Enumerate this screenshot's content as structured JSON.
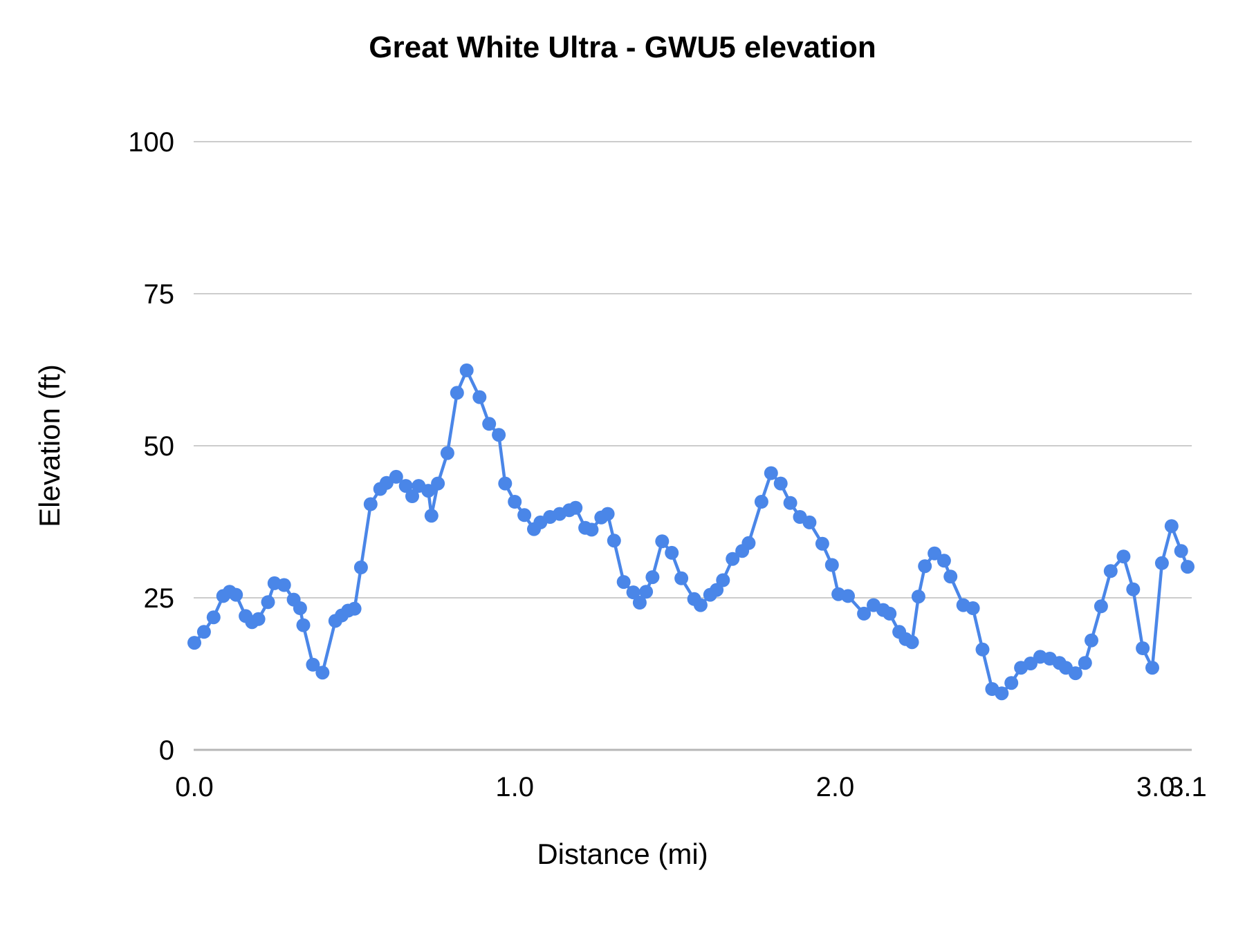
{
  "chart_data": {
    "type": "line",
    "title": "Great White Ultra - GWU5 elevation",
    "xlabel": "Distance (mi)",
    "ylabel": "Elevation (ft)",
    "xlim": [
      0,
      3.1
    ],
    "ylim": [
      0,
      100
    ],
    "grid": true,
    "legend": "none",
    "x_ticks": [
      {
        "value": 0.0,
        "label": "0.0"
      },
      {
        "value": 1.0,
        "label": "1.0"
      },
      {
        "value": 2.0,
        "label": "2.0"
      },
      {
        "value": 3.0,
        "label": "3.0"
      },
      {
        "value": 3.1,
        "label": "3.1"
      }
    ],
    "y_ticks": [
      {
        "value": 0,
        "label": "0"
      },
      {
        "value": 25,
        "label": "25"
      },
      {
        "value": 50,
        "label": "50"
      },
      {
        "value": 75,
        "label": "75"
      },
      {
        "value": 100,
        "label": "100"
      }
    ],
    "series": [
      {
        "name": "GWU5 elevation",
        "color": "#4a86e8",
        "marker_radius": 10,
        "line_width": 4.5,
        "points": [
          [
            0.0,
            17.6
          ],
          [
            0.03,
            19.4
          ],
          [
            0.06,
            21.8
          ],
          [
            0.09,
            25.3
          ],
          [
            0.11,
            26.0
          ],
          [
            0.13,
            25.5
          ],
          [
            0.16,
            22.0
          ],
          [
            0.18,
            21.0
          ],
          [
            0.2,
            21.5
          ],
          [
            0.23,
            24.3
          ],
          [
            0.25,
            27.4
          ],
          [
            0.28,
            27.1
          ],
          [
            0.31,
            24.7
          ],
          [
            0.33,
            23.3
          ],
          [
            0.34,
            20.5
          ],
          [
            0.37,
            14.0
          ],
          [
            0.4,
            12.7
          ],
          [
            0.44,
            21.2
          ],
          [
            0.46,
            22.1
          ],
          [
            0.48,
            22.9
          ],
          [
            0.5,
            23.2
          ],
          [
            0.52,
            30.0
          ],
          [
            0.55,
            40.4
          ],
          [
            0.58,
            42.9
          ],
          [
            0.6,
            43.9
          ],
          [
            0.63,
            44.9
          ],
          [
            0.66,
            43.4
          ],
          [
            0.68,
            41.7
          ],
          [
            0.7,
            43.4
          ],
          [
            0.73,
            42.6
          ],
          [
            0.74,
            38.5
          ],
          [
            0.76,
            43.8
          ],
          [
            0.79,
            48.8
          ],
          [
            0.82,
            58.7
          ],
          [
            0.85,
            62.4
          ],
          [
            0.89,
            58.0
          ],
          [
            0.92,
            53.6
          ],
          [
            0.95,
            51.8
          ],
          [
            0.97,
            43.8
          ],
          [
            1.0,
            40.8
          ],
          [
            1.03,
            38.6
          ],
          [
            1.06,
            36.3
          ],
          [
            1.08,
            37.4
          ],
          [
            1.11,
            38.3
          ],
          [
            1.14,
            38.8
          ],
          [
            1.17,
            39.4
          ],
          [
            1.19,
            39.8
          ],
          [
            1.22,
            36.5
          ],
          [
            1.24,
            36.2
          ],
          [
            1.27,
            38.2
          ],
          [
            1.29,
            38.8
          ],
          [
            1.31,
            34.4
          ],
          [
            1.34,
            27.6
          ],
          [
            1.37,
            25.9
          ],
          [
            1.39,
            24.2
          ],
          [
            1.41,
            26.0
          ],
          [
            1.43,
            28.4
          ],
          [
            1.46,
            34.3
          ],
          [
            1.49,
            32.4
          ],
          [
            1.52,
            28.2
          ],
          [
            1.56,
            24.8
          ],
          [
            1.58,
            23.8
          ],
          [
            1.61,
            25.5
          ],
          [
            1.63,
            26.3
          ],
          [
            1.65,
            27.9
          ],
          [
            1.68,
            31.4
          ],
          [
            1.71,
            32.7
          ],
          [
            1.73,
            34.0
          ],
          [
            1.77,
            40.8
          ],
          [
            1.8,
            45.5
          ],
          [
            1.83,
            43.8
          ],
          [
            1.86,
            40.6
          ],
          [
            1.89,
            38.3
          ],
          [
            1.92,
            37.4
          ],
          [
            1.96,
            33.9
          ],
          [
            1.99,
            30.4
          ],
          [
            2.01,
            25.6
          ],
          [
            2.04,
            25.3
          ],
          [
            2.09,
            22.4
          ],
          [
            2.12,
            23.8
          ],
          [
            2.15,
            23.0
          ],
          [
            2.17,
            22.4
          ],
          [
            2.2,
            19.4
          ],
          [
            2.22,
            18.2
          ],
          [
            2.24,
            17.7
          ],
          [
            2.26,
            25.2
          ],
          [
            2.28,
            30.2
          ],
          [
            2.31,
            32.3
          ],
          [
            2.34,
            31.1
          ],
          [
            2.36,
            28.5
          ],
          [
            2.4,
            23.8
          ],
          [
            2.43,
            23.3
          ],
          [
            2.46,
            16.5
          ],
          [
            2.49,
            10.0
          ],
          [
            2.52,
            9.3
          ],
          [
            2.55,
            11.0
          ],
          [
            2.58,
            13.5
          ],
          [
            2.61,
            14.2
          ],
          [
            2.64,
            15.3
          ],
          [
            2.67,
            15.0
          ],
          [
            2.7,
            14.3
          ],
          [
            2.72,
            13.5
          ],
          [
            2.75,
            12.6
          ],
          [
            2.78,
            14.3
          ],
          [
            2.8,
            18.0
          ],
          [
            2.83,
            23.6
          ],
          [
            2.86,
            29.4
          ],
          [
            2.9,
            31.8
          ],
          [
            2.93,
            26.4
          ],
          [
            2.96,
            16.7
          ],
          [
            2.99,
            13.5
          ],
          [
            3.02,
            30.7
          ],
          [
            3.05,
            36.8
          ],
          [
            3.08,
            32.7
          ],
          [
            3.1,
            30.1
          ]
        ]
      }
    ]
  },
  "colors": {
    "background": "#ffffff",
    "grid": "#cccccc",
    "baseline": "#b7b7b7",
    "text": "#000000"
  }
}
